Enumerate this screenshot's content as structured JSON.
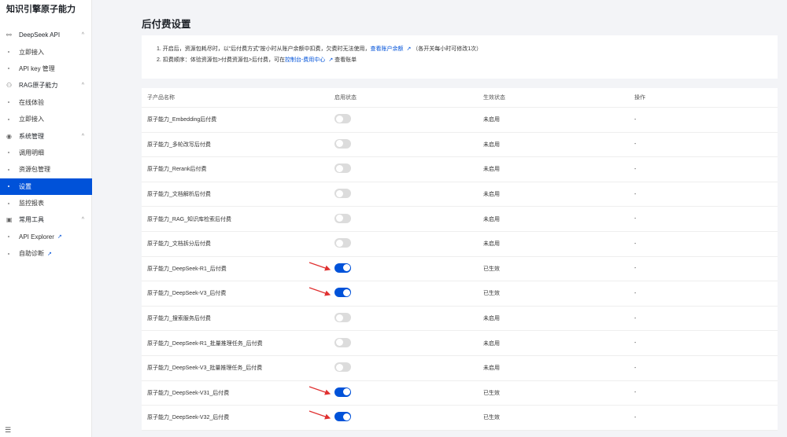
{
  "app_title": "知识引擎原子能力",
  "sidebar": {
    "groups": [
      {
        "label": "DeepSeek API",
        "icon": "link-icon",
        "items": [
          {
            "label": "立即接入"
          },
          {
            "label": "API key 管理"
          }
        ]
      },
      {
        "label": "RAG原子能力",
        "icon": "user-group-icon",
        "items": [
          {
            "label": "在线体验"
          },
          {
            "label": "立即接入"
          }
        ]
      },
      {
        "label": "系统管理",
        "icon": "settings-circle-icon",
        "items": [
          {
            "label": "调用明细"
          },
          {
            "label": "资源包管理"
          },
          {
            "label": "设置",
            "active": true
          },
          {
            "label": "监控报表"
          }
        ]
      },
      {
        "label": "常用工具",
        "icon": "toolbox-icon",
        "items": [
          {
            "label": "API Explorer",
            "external": true
          },
          {
            "label": "自助诊断",
            "external": true
          }
        ]
      }
    ]
  },
  "page_title": "后付费设置",
  "info": {
    "line1_pre": "1. 开启后，资源包耗尽时，以“后付费方式”按小时从账户余额中扣费，欠费时无法使用，",
    "line1_link": "查看账户余额",
    "line1_post": "（各开关每小时可修改1次）",
    "line2_pre": "2. 扣费顺序：体验资源包>付费资源包>后付费，可在",
    "line2_link": "控制台-费用中心",
    "line2_post": "查看账单"
  },
  "table": {
    "headers": [
      "子产品名称",
      "启用状态",
      "生效状态",
      "操作"
    ],
    "rows": [
      {
        "name": "原子能力_Embedding后付费",
        "enabled": false,
        "status": "未启用",
        "action": "-"
      },
      {
        "name": "原子能力_多轮改写后付费",
        "enabled": false,
        "status": "未启用",
        "action": "-"
      },
      {
        "name": "原子能力_Rerank后付费",
        "enabled": false,
        "status": "未启用",
        "action": "-"
      },
      {
        "name": "原子能力_文档解析后付费",
        "enabled": false,
        "status": "未启用",
        "action": "-"
      },
      {
        "name": "原子能力_RAG_知识库检索后付费",
        "enabled": false,
        "status": "未启用",
        "action": "-"
      },
      {
        "name": "原子能力_文档拆分后付费",
        "enabled": false,
        "status": "未启用",
        "action": "-"
      },
      {
        "name": "原子能力_DeepSeek-R1_后付费",
        "enabled": true,
        "status": "已生效",
        "action": "-"
      },
      {
        "name": "原子能力_DeepSeek-V3_后付费",
        "enabled": true,
        "status": "已生效",
        "action": "-"
      },
      {
        "name": "原子能力_搜索服务后付费",
        "enabled": false,
        "status": "未启用",
        "action": "-"
      },
      {
        "name": "原子能力_DeepSeek-R1_批量推理任务_后付费",
        "enabled": false,
        "status": "未启用",
        "action": "-"
      },
      {
        "name": "原子能力_DeepSeek-V3_批量推理任务_后付费",
        "enabled": false,
        "status": "未启用",
        "action": "-"
      },
      {
        "name": "原子能力_DeepSeek-V31_后付费",
        "enabled": true,
        "status": "已生效",
        "action": "-"
      },
      {
        "name": "原子能力_DeepSeek-V32_后付费",
        "enabled": true,
        "status": "已生效",
        "action": "-"
      }
    ]
  },
  "colors": {
    "accent": "#0052d9",
    "annotation_arrow": "#e03131"
  }
}
